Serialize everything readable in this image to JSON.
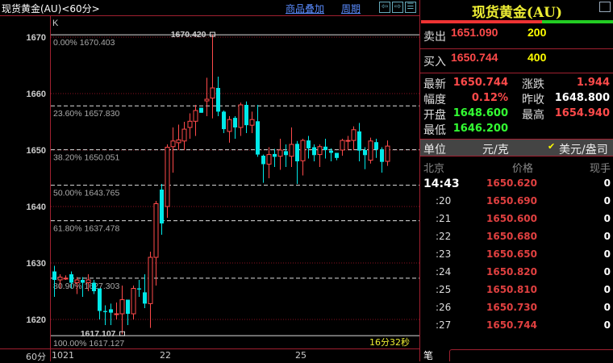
{
  "header": {
    "title": "现货黄金(AU)<60分>",
    "overlay_link": "商品叠加",
    "period_link": "周期",
    "nav_icons": [
      "arrow-left-icon",
      "arrow-right-icon",
      "layout-icon"
    ]
  },
  "chart": {
    "indicator_label": "K",
    "y_ticks": [
      1670,
      1660,
      1650,
      1640,
      1630,
      1620
    ],
    "high_marker": "1670.420",
    "low_marker": "1617.107",
    "timer": "16分32秒",
    "period_label": "60分",
    "x_labels": [
      "1021",
      "22",
      "25"
    ],
    "fib": [
      {
        "label": "0.00% 1670.403",
        "value": 1670.403
      },
      {
        "label": "23.60% 1657.830",
        "value": 1657.83
      },
      {
        "label": "38.20% 1650.051",
        "value": 1650.051
      },
      {
        "label": "50.00% 1643.765",
        "value": 1643.765
      },
      {
        "label": "61.80% 1637.478",
        "value": 1637.478
      },
      {
        "label": "80.90% 1627.303",
        "value": 1627.303
      },
      {
        "label": "100.00% 1617.127",
        "value": 1617.127
      }
    ],
    "colors": {
      "up": "#ff4a4a",
      "down": "#00e8e8",
      "grid": "#8a1020"
    },
    "candles": [
      [
        1628.5,
        1629.5,
        1624,
        1627
      ],
      [
        1627,
        1628,
        1625.5,
        1627.5
      ],
      [
        1627.3,
        1627.8,
        1627,
        1627.3
      ],
      [
        1628,
        1628.5,
        1625.5,
        1626.5
      ],
      [
        1626.5,
        1627.5,
        1624.5,
        1627
      ],
      [
        1627,
        1627.5,
        1624,
        1626.5
      ],
      [
        1626.5,
        1628,
        1625,
        1627
      ],
      [
        1626.5,
        1627,
        1624.5,
        1625
      ],
      [
        1625.5,
        1625.5,
        1620,
        1621.5
      ],
      [
        1621.5,
        1622.5,
        1619,
        1621.3
      ],
      [
        1621.8,
        1622.8,
        1619,
        1621.2
      ],
      [
        1621,
        1623,
        1620,
        1621
      ],
      [
        1621,
        1626,
        1617.4,
        1623.5
      ],
      [
        1623.5,
        1623.5,
        1619,
        1621
      ],
      [
        1621,
        1626,
        1620,
        1625.5
      ],
      [
        1625.5,
        1627,
        1624,
        1625.3
      ],
      [
        1624.8,
        1628,
        1622,
        1622.8
      ],
      [
        1622.8,
        1632,
        1618.5,
        1631
      ],
      [
        1631,
        1641,
        1626,
        1640.5
      ],
      [
        1643,
        1644,
        1635,
        1637
      ],
      [
        1640,
        1651,
        1638,
        1650.5
      ],
      [
        1650.6,
        1654,
        1646,
        1651.6
      ],
      [
        1651.3,
        1654.5,
        1650,
        1651.8
      ],
      [
        1651.6,
        1655,
        1650,
        1653.7
      ],
      [
        1654,
        1656.5,
        1652,
        1655.1
      ],
      [
        1655.1,
        1658,
        1652.5,
        1657
      ],
      [
        1657.5,
        1657.5,
        1656.6,
        1656.6
      ],
      [
        1658.7,
        1662.8,
        1656,
        1659
      ],
      [
        1659.2,
        1670.42,
        1655.6,
        1661
      ],
      [
        1661,
        1663,
        1656,
        1656.8
      ],
      [
        1656.8,
        1657,
        1653,
        1653.7
      ],
      [
        1653.3,
        1656,
        1651.3,
        1655.4
      ],
      [
        1655.7,
        1656,
        1652,
        1654
      ],
      [
        1654,
        1658.4,
        1652.5,
        1658
      ],
      [
        1658,
        1658.6,
        1653,
        1654.4
      ],
      [
        1654.4,
        1656.8,
        1653,
        1655.4
      ],
      [
        1655.1,
        1658,
        1648.8,
        1649.2
      ],
      [
        1649,
        1649.2,
        1644.2,
        1647.5
      ],
      [
        1647.5,
        1650.5,
        1645,
        1649.2
      ],
      [
        1649.3,
        1650.2,
        1647,
        1648.8
      ],
      [
        1648.9,
        1652,
        1646.5,
        1650
      ],
      [
        1649.8,
        1651,
        1647,
        1649.1
      ],
      [
        1648.9,
        1654,
        1647,
        1651
      ],
      [
        1651.1,
        1651.6,
        1644,
        1648
      ],
      [
        1648.1,
        1652,
        1645.5,
        1651.7
      ],
      [
        1651.7,
        1652.5,
        1648.5,
        1650.3
      ],
      [
        1650.5,
        1651,
        1648,
        1649.1
      ],
      [
        1649.2,
        1651,
        1647,
        1650.6
      ],
      [
        1650.6,
        1652,
        1648.5,
        1650
      ],
      [
        1649.9,
        1650.3,
        1648,
        1649.5
      ],
      [
        1649.5,
        1649.5,
        1648.2,
        1648.6
      ],
      [
        1650,
        1652,
        1649,
        1651.7
      ],
      [
        1651.7,
        1652.5,
        1650,
        1651.7
      ],
      [
        1651.7,
        1654.2,
        1650,
        1653.6
      ],
      [
        1653.3,
        1654.8,
        1648,
        1649.9
      ],
      [
        1650,
        1650.5,
        1646.6,
        1649.1
      ],
      [
        1648.2,
        1652.2,
        1647.6,
        1651.6
      ],
      [
        1651.4,
        1652,
        1648.6,
        1650.1
      ],
      [
        1650.1,
        1650.5,
        1646,
        1647.9
      ],
      [
        1648,
        1651.7,
        1647.2,
        1650.7
      ]
    ]
  },
  "quote": {
    "title": "现货黄金(AU)",
    "sell_label": "卖出",
    "sell_price": "1651.090",
    "sell_vol": "200",
    "buy_label": "买入",
    "buy_price": "1650.744",
    "buy_vol": "400",
    "bid_ratio": 0.63,
    "stats": [
      {
        "l1": "最新",
        "v1": "1650.744",
        "c1": "red",
        "l2": "涨跌",
        "v2": "1.944",
        "c2": "red"
      },
      {
        "l1": "幅度",
        "v1": "0.12%",
        "c1": "red",
        "l2": "昨收",
        "v2": "1648.800",
        "c2": "wht"
      },
      {
        "l1": "开盘",
        "v1": "1648.600",
        "c1": "grn",
        "l2": "最高",
        "v2": "1654.940",
        "c2": "red"
      },
      {
        "l1": "最低",
        "v1": "1646.200",
        "c1": "grn",
        "l2": "",
        "v2": "",
        "c2": "wht"
      }
    ],
    "unit_label": "单位",
    "unit_cny": "元/克",
    "unit_usd": "美元/盎司",
    "unit_selected": "美元/盎司",
    "ticks_header": [
      "北京",
      "价格",
      "现手"
    ],
    "ticks": [
      {
        "t": "14:43",
        "p": "1650.620",
        "v": "0"
      },
      {
        "t": ":20",
        "p": "1650.690",
        "v": "0"
      },
      {
        "t": ":21",
        "p": "1650.600",
        "v": "0"
      },
      {
        "t": ":22",
        "p": "1650.680",
        "v": "0"
      },
      {
        "t": ":23",
        "p": "1650.650",
        "v": "0"
      },
      {
        "t": ":24",
        "p": "1650.820",
        "v": "0"
      },
      {
        "t": ":25",
        "p": "1650.810",
        "v": "0"
      },
      {
        "t": ":26",
        "p": "1650.730",
        "v": "0"
      },
      {
        "t": ":27",
        "p": "1650.744",
        "v": "0"
      }
    ],
    "tab_label": "笔"
  }
}
